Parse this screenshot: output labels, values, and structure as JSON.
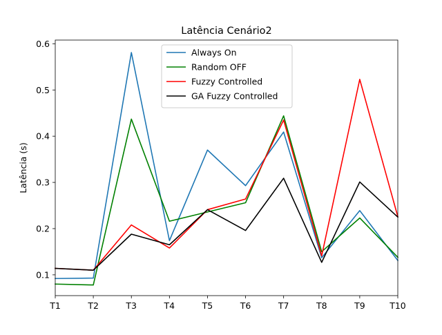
{
  "chart_data": {
    "type": "line",
    "title": "Latência Cenário2",
    "xlabel": "",
    "ylabel": "Latência (s)",
    "categories": [
      "T1",
      "T2",
      "T3",
      "T4",
      "T5",
      "T6",
      "T7",
      "T8",
      "T9",
      "T10"
    ],
    "ylim": [
      0.055,
      0.608
    ],
    "yticks": [
      0.1,
      0.2,
      0.3,
      0.4,
      0.5,
      0.6
    ],
    "ytick_labels": [
      "0.1",
      "0.2",
      "0.3",
      "0.4",
      "0.5",
      "0.6"
    ],
    "grid": false,
    "legend_position": "top-center",
    "series": [
      {
        "name": "Always On",
        "color": "#1f77b4",
        "values": [
          0.092,
          0.093,
          0.581,
          0.174,
          0.37,
          0.293,
          0.409,
          0.137,
          0.239,
          0.131
        ]
      },
      {
        "name": "Random OFF",
        "color": "#008000",
        "values": [
          0.08,
          0.078,
          0.437,
          0.216,
          0.236,
          0.256,
          0.444,
          0.15,
          0.223,
          0.138
        ]
      },
      {
        "name": "Fuzzy Controlled",
        "color": "#ff0000",
        "values": [
          0.114,
          0.11,
          0.208,
          0.158,
          0.241,
          0.264,
          0.435,
          0.141,
          0.523,
          0.226
        ]
      },
      {
        "name": "GA Fuzzy Controlled",
        "color": "#000000",
        "values": [
          0.114,
          0.11,
          0.188,
          0.165,
          0.241,
          0.196,
          0.309,
          0.127,
          0.301,
          0.225
        ]
      }
    ]
  }
}
